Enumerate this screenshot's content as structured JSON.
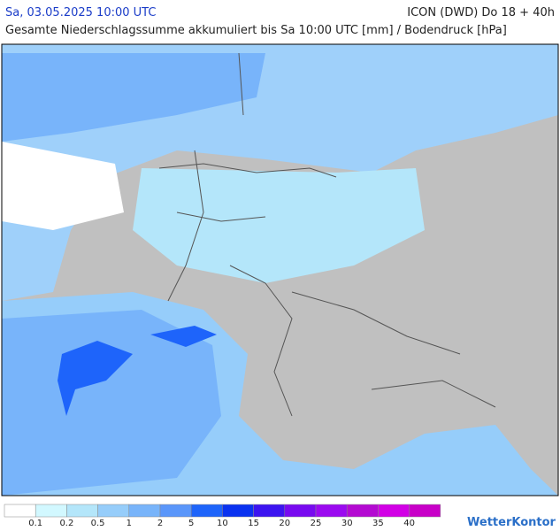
{
  "header": {
    "date_text": "Sa, 03.05.2025 10:00 UTC",
    "model": "ICON (DWD) Do 18 + 40h",
    "subtitle": "Gesamte Niederschlagssumme akkumuliert bis Sa 10:00 UTC [mm] / Bodendruck [hPa]"
  },
  "legend": {
    "colors": [
      "#ffffff",
      "#d2f8ff",
      "#b4e6fa",
      "#96cdfa",
      "#78b4fa",
      "#5a96fa",
      "#1e64fa",
      "#0a32f0",
      "#3c14f0",
      "#780af0",
      "#9b0af0",
      "#b40ad2",
      "#d200e6",
      "#c800c8"
    ],
    "labels": [
      "0.1",
      "0.2",
      "0.5",
      "1",
      "2",
      "5",
      "10",
      "15",
      "20",
      "25",
      "30",
      "35",
      "40"
    ]
  },
  "logo": "WetterKontor"
}
